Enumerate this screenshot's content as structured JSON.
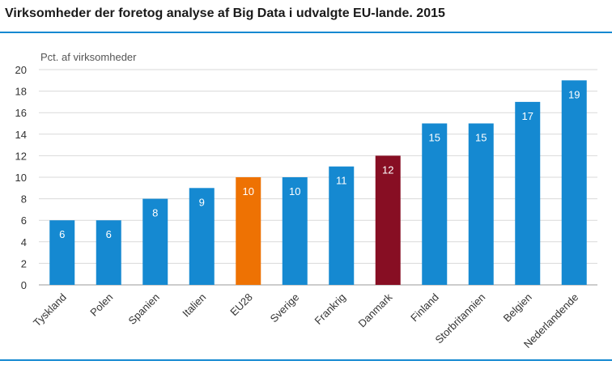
{
  "title": "Virksomheder der foretog analyse af Big Data i udvalgte EU-lande. 2015",
  "chart_data": {
    "type": "bar",
    "title": "Virksomheder der foretog analyse af Big Data i udvalgte EU-lande. 2015",
    "ylabel": "Pct. af virksomheder",
    "xlabel": "",
    "ylim": [
      0,
      20
    ],
    "yticks": [
      0,
      2,
      4,
      6,
      8,
      10,
      12,
      14,
      16,
      18,
      20
    ],
    "grid": true,
    "categories": [
      "Tyskland",
      "Polen",
      "Spanien",
      "Italien",
      "EU28",
      "Sverige",
      "Frankrig",
      "Danmark",
      "Finland",
      "Storbritannien",
      "Belgien",
      "Nederlandende"
    ],
    "values": [
      6,
      6,
      8,
      9,
      10,
      10,
      11,
      12,
      15,
      15,
      17,
      19
    ],
    "colors": [
      "#1589d1",
      "#1589d1",
      "#1589d1",
      "#1589d1",
      "#ee7203",
      "#1589d1",
      "#1589d1",
      "#870e23",
      "#1589d1",
      "#1589d1",
      "#1589d1",
      "#1589d1"
    ]
  }
}
